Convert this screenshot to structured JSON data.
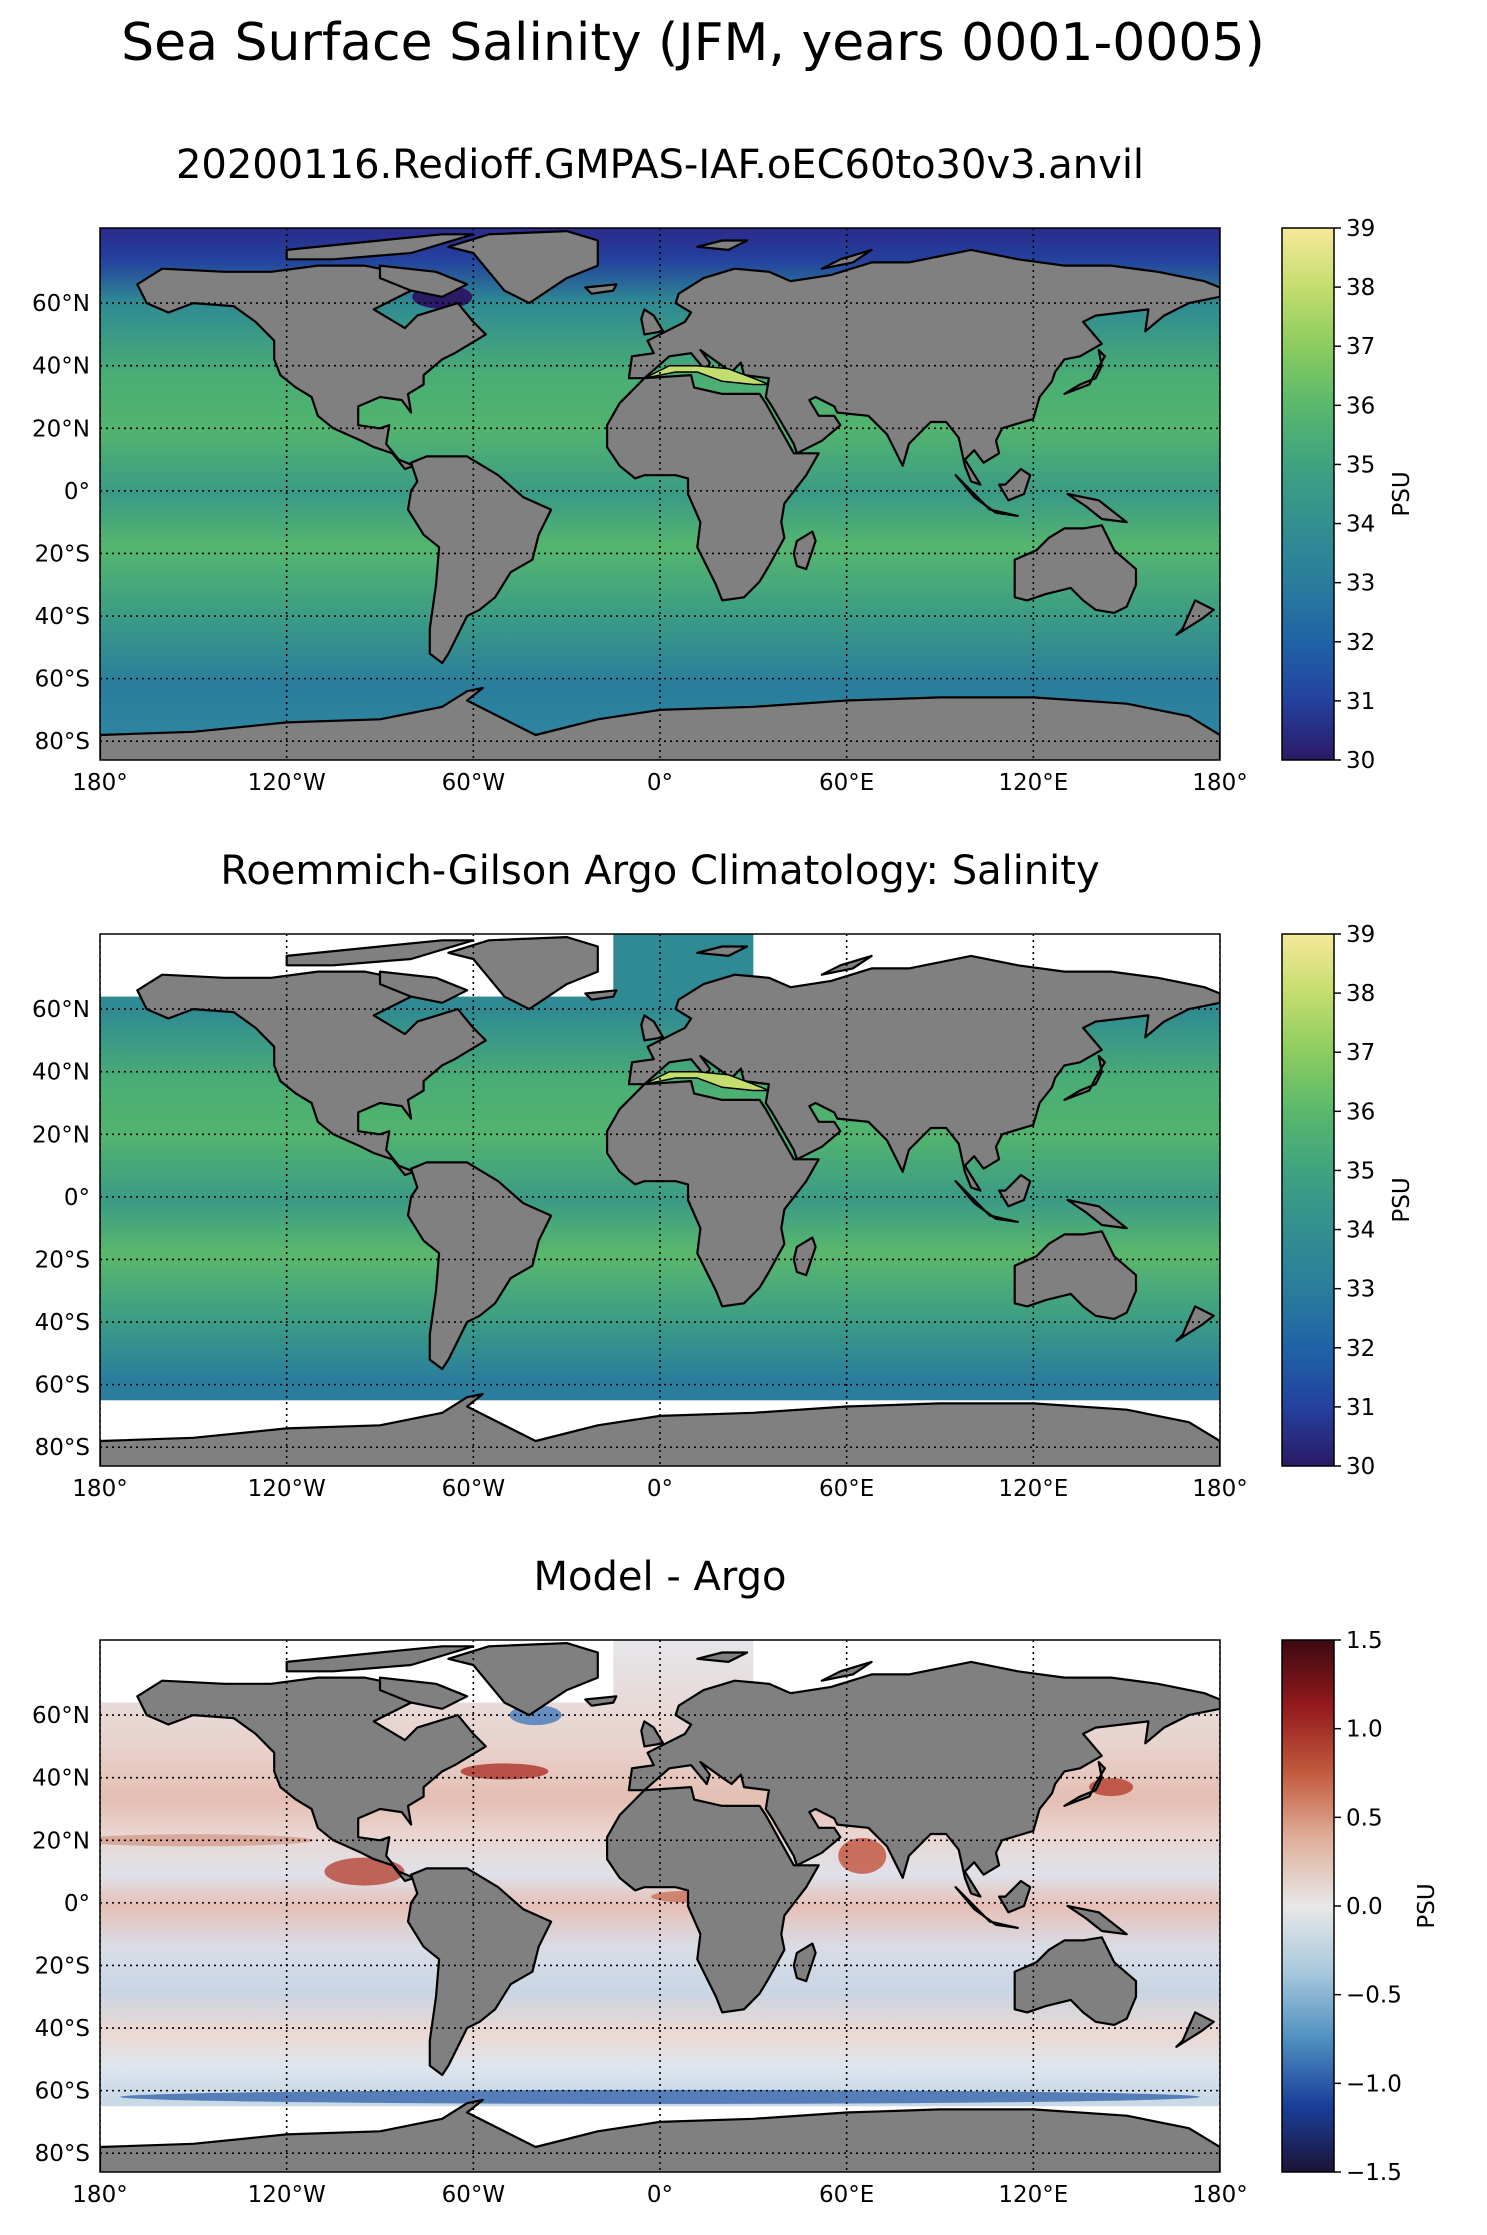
{
  "figure": {
    "suptitle": "Sea Surface Salinity (JFM, years 0001-0005)",
    "land_color": "#808080",
    "missing_color": "#ffffff"
  },
  "axes": {
    "lon_ticks": [
      "180°",
      "120°W",
      "60°W",
      "0°",
      "60°E",
      "120°E",
      "180°"
    ],
    "lat_ticks": [
      "60°N",
      "40°N",
      "20°N",
      "0°",
      "20°S",
      "40°S",
      "60°S",
      "80°S"
    ]
  },
  "panels": [
    {
      "title": "20200116.Redioff.GMPAS-IAF.oEC60to30v3.anvil",
      "colorbar": {
        "label": "PSU",
        "ticks": [
          "30",
          "31",
          "32",
          "33",
          "34",
          "35",
          "36",
          "37",
          "38",
          "39"
        ],
        "range": [
          30,
          39
        ],
        "colors": [
          "#2b1a66",
          "#24419e",
          "#1f63a6",
          "#2a7d9c",
          "#338f90",
          "#3fa380",
          "#5ab86c",
          "#8ccc60",
          "#c4dd6f",
          "#f6e899"
        ]
      }
    },
    {
      "title": "Roemmich-Gilson Argo Climatology: Salinity",
      "colorbar": {
        "label": "PSU",
        "ticks": [
          "30",
          "31",
          "32",
          "33",
          "34",
          "35",
          "36",
          "37",
          "38",
          "39"
        ],
        "range": [
          30,
          39
        ],
        "colors": [
          "#2b1a66",
          "#24419e",
          "#1f63a6",
          "#2a7d9c",
          "#338f90",
          "#3fa380",
          "#5ab86c",
          "#8ccc60",
          "#c4dd6f",
          "#f6e899"
        ]
      }
    },
    {
      "title": "Model - Argo",
      "colorbar": {
        "label": "PSU",
        "ticks": [
          "1.5",
          "1.0",
          "0.5",
          "0.0",
          "−0.5",
          "−1.0",
          "−1.5"
        ],
        "range": [
          -1.5,
          1.5
        ],
        "colors": [
          "#1c1437",
          "#1a3f9a",
          "#4f8fc0",
          "#a8c8dc",
          "#e8e8e8",
          "#e0b09c",
          "#c25a3e",
          "#941a1d",
          "#3c0911"
        ]
      }
    }
  ]
}
